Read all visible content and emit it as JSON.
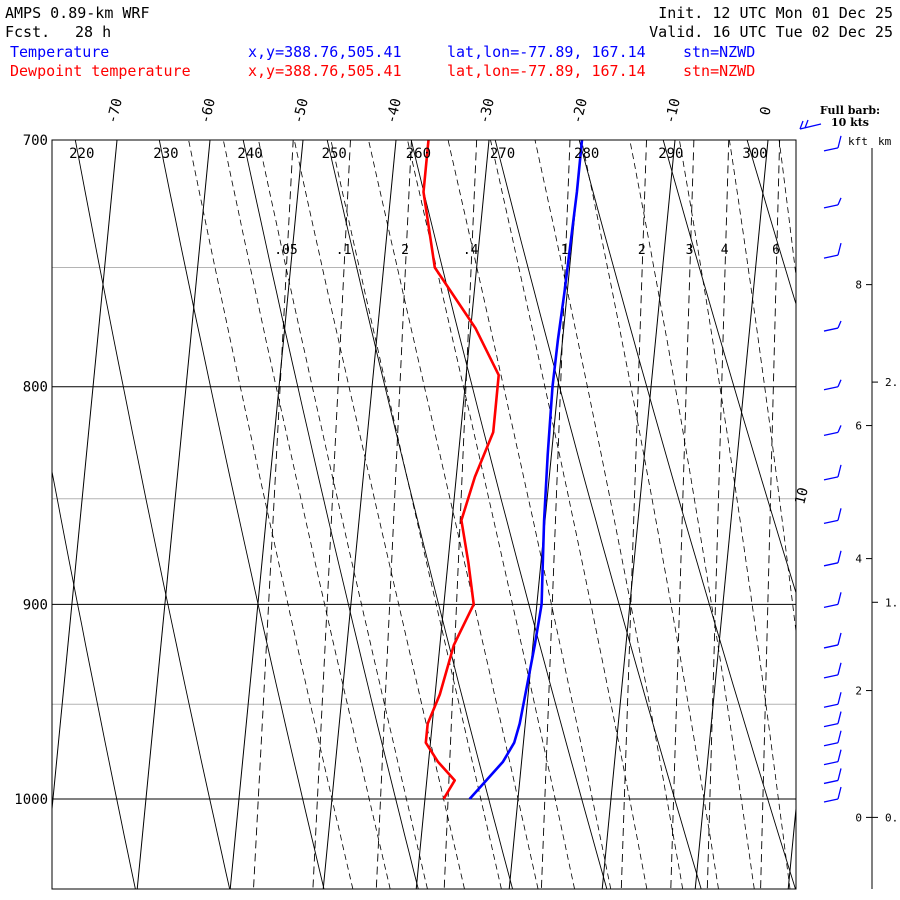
{
  "header": {
    "model": "AMPS 0.89-km WRF",
    "fcst_label": "Fcst.",
    "fcst_value": "28 h",
    "init": "Init. 12 UTC Mon 01 Dec 25",
    "valid": "Valid. 16 UTC Tue 02 Dec 25"
  },
  "legend": [
    {
      "name": "Temperature",
      "xy": "x,y=388.76,505.41",
      "latlon": "lat,lon=-77.89, 167.14",
      "stn": "stn=NZWD",
      "color": "#0000ff"
    },
    {
      "name": "Dewpoint temperature",
      "xy": "x,y=388.76,505.41",
      "latlon": "lat,lon=-77.89, 167.14",
      "stn": "stn=NZWD",
      "color": "#ff0000"
    }
  ],
  "barb_legend": {
    "line1": "Full barb:",
    "line2": "10 kts"
  },
  "height_axis": {
    "kft_label": "kft",
    "km_label": "km",
    "kft_ticks": [
      {
        "value": "0",
        "p": 1010
      },
      {
        "value": "2",
        "p": 943
      },
      {
        "value": "4",
        "p": 878
      },
      {
        "value": "6",
        "p": 817
      },
      {
        "value": "8",
        "p": 757
      }
    ],
    "km_ticks": [
      {
        "value": "0.",
        "p": 1010
      },
      {
        "value": "1.",
        "p": 899
      },
      {
        "value": "2.",
        "p": 798
      }
    ]
  },
  "chart_data": {
    "type": "line",
    "title": "",
    "ylabel": "",
    "xlabel": "",
    "pressure_range": [
      700,
      1040
    ],
    "pressure_ticks": [
      "700",
      "800",
      "900",
      "1000"
    ],
    "temperature_ticks": [
      "-70",
      "-60",
      "-50",
      "-40",
      "-30",
      "-20",
      "-10",
      "0"
    ],
    "annotation_10": "10",
    "theta_labels": [
      "220",
      "230",
      "240",
      "250",
      "260",
      "270",
      "280",
      "290",
      "300"
    ],
    "mixing_ratio_labels": [
      ".05",
      ".1",
      "2",
      ".4",
      "1",
      "2",
      "3",
      "4",
      "6"
    ],
    "series": [
      {
        "name": "Temperature",
        "color": "#0000ff",
        "points": [
          {
            "p": 700,
            "t": -20.0
          },
          {
            "p": 720,
            "t": -20.0
          },
          {
            "p": 760,
            "t": -20.3
          },
          {
            "p": 780,
            "t": -20.5
          },
          {
            "p": 800,
            "t": -20.6
          },
          {
            "p": 830,
            "t": -20.4
          },
          {
            "p": 860,
            "t": -20.1
          },
          {
            "p": 880,
            "t": -19.8
          },
          {
            "p": 900,
            "t": -19.5
          },
          {
            "p": 920,
            "t": -19.8
          },
          {
            "p": 940,
            "t": -20.2
          },
          {
            "p": 960,
            "t": -20.6
          },
          {
            "p": 970,
            "t": -21.0
          },
          {
            "p": 980,
            "t": -22.0
          },
          {
            "p": 990,
            "t": -23.6
          },
          {
            "p": 1000,
            "t": -25.2
          }
        ]
      },
      {
        "name": "Dewpoint temperature",
        "color": "#ff0000",
        "points": [
          {
            "p": 700,
            "t": -36.5
          },
          {
            "p": 720,
            "t": -36.5
          },
          {
            "p": 750,
            "t": -34.5
          },
          {
            "p": 775,
            "t": -29.5
          },
          {
            "p": 795,
            "t": -26.5
          },
          {
            "p": 810,
            "t": -26.5
          },
          {
            "p": 820,
            "t": -26.5
          },
          {
            "p": 840,
            "t": -28.0
          },
          {
            "p": 860,
            "t": -29.0
          },
          {
            "p": 880,
            "t": -27.8
          },
          {
            "p": 900,
            "t": -26.8
          },
          {
            "p": 920,
            "t": -28.5
          },
          {
            "p": 945,
            "t": -29.5
          },
          {
            "p": 960,
            "t": -30.5
          },
          {
            "p": 970,
            "t": -30.5
          },
          {
            "p": 980,
            "t": -29.0
          },
          {
            "p": 990,
            "t": -27.0
          },
          {
            "p": 1000,
            "t": -28.0
          }
        ]
      }
    ],
    "wind_barbs": [
      {
        "p": 703,
        "dir": "W",
        "kts": 10
      },
      {
        "p": 725,
        "dir": "W",
        "kts": 5
      },
      {
        "p": 745,
        "dir": "W",
        "kts": 10
      },
      {
        "p": 775,
        "dir": "W",
        "kts": 5
      },
      {
        "p": 800,
        "dir": "W",
        "kts": 5
      },
      {
        "p": 820,
        "dir": "W",
        "kts": 5
      },
      {
        "p": 840,
        "dir": "W",
        "kts": 10
      },
      {
        "p": 860,
        "dir": "W",
        "kts": 10
      },
      {
        "p": 880,
        "dir": "W",
        "kts": 10
      },
      {
        "p": 900,
        "dir": "W",
        "kts": 10
      },
      {
        "p": 920,
        "dir": "W",
        "kts": 10
      },
      {
        "p": 935,
        "dir": "W",
        "kts": 10
      },
      {
        "p": 950,
        "dir": "W",
        "kts": 10
      },
      {
        "p": 960,
        "dir": "W",
        "kts": 10
      },
      {
        "p": 970,
        "dir": "W",
        "kts": 10
      },
      {
        "p": 980,
        "dir": "W",
        "kts": 10
      },
      {
        "p": 990,
        "dir": "W",
        "kts": 10
      },
      {
        "p": 1000,
        "dir": "W",
        "kts": 10
      }
    ]
  }
}
